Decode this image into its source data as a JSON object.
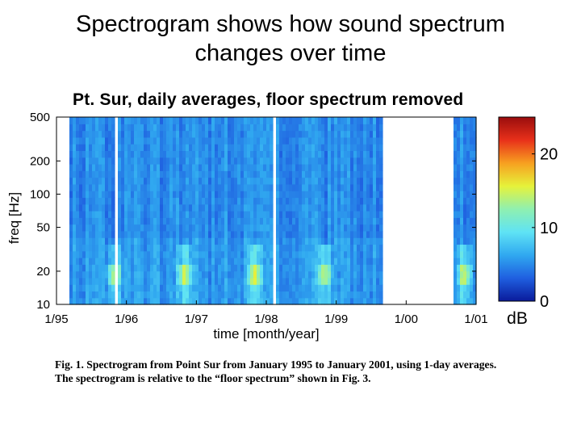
{
  "slide": {
    "title_line1": "Spectrogram shows how sound spectrum",
    "title_line2": "changes over time"
  },
  "chart_data": {
    "type": "heatmap",
    "title": "Pt. Sur, daily averages, floor spectrum removed",
    "xlabel": "time [month/year]",
    "ylabel": "freq [Hz]",
    "x_ticks": [
      "1/95",
      "1/96",
      "1/97",
      "1/98",
      "1/99",
      "1/00",
      "1/01"
    ],
    "y_ticks": [
      500,
      200,
      100,
      50,
      20,
      10
    ],
    "y_scale": "log",
    "ylim": [
      10,
      500
    ],
    "xlim": [
      "1/95",
      "1/01"
    ],
    "colorbar": {
      "label": "dB",
      "ticks": [
        20,
        10,
        0
      ],
      "range": [
        0,
        25
      ],
      "colors": [
        "#0a1a9a",
        "#1f5fe0",
        "#30a8f0",
        "#5fe3f5",
        "#8ff0b0",
        "#e6f23a",
        "#f7a020",
        "#e8301a",
        "#9a0d0d"
      ]
    },
    "features": {
      "background_level_db": 5,
      "hotspot_band_hz": [
        15,
        22
      ],
      "hotspot_times": [
        "11/95",
        "11/96",
        "11/97",
        "11/98",
        "11/00"
      ],
      "data_gaps": [
        "1/95-3/95",
        "11/95",
        "2/98",
        "9/99-9/00"
      ]
    }
  },
  "caption": {
    "line1": "Fig. 1. Spectrogram from Point Sur from January 1995 to January 2001, using 1-day averages.",
    "line2": "The spectrogram is relative to the “floor spectrum” shown in Fig. 3."
  }
}
